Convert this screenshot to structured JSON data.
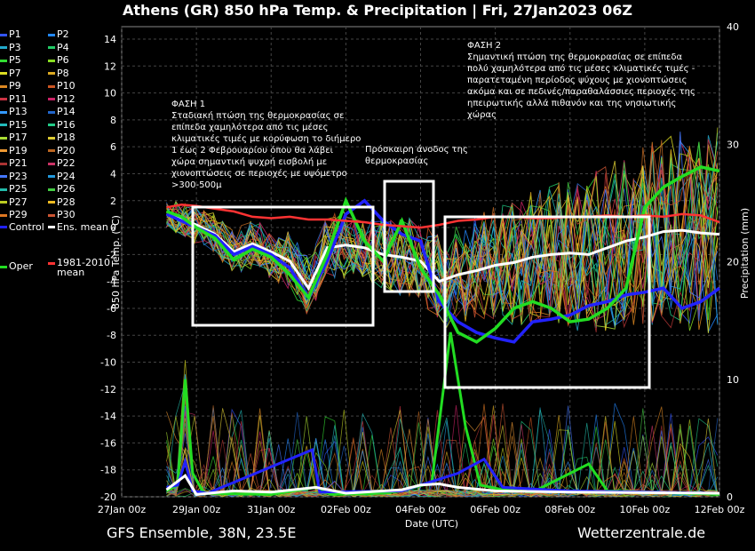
{
  "title": "Athens  (GR)  850 hPa Temp. & Precipitation | Fri, 27Jan2023 06Z",
  "footer": {
    "left": "GFS Ensemble, 38N, 23.5E",
    "right": "Wetterzentrale.de"
  },
  "colors": {
    "control": "#2222ff",
    "ens_mean": "#ffffff",
    "oper": "#22dd22",
    "climate": "#ff3333",
    "members": [
      "#3355ff",
      "#2288ff",
      "#22aacc",
      "#22cc66",
      "#33dd33",
      "#88dd22",
      "#dddd22",
      "#ddaa22",
      "#dd8822",
      "#cc5522",
      "#cc3344",
      "#cc2266",
      "#3399ff",
      "#2266cc",
      "#22bbbb",
      "#22cc88",
      "#aadd33",
      "#ddcc33",
      "#ee9933",
      "#bb6622",
      "#aa3333",
      "#cc3366",
      "#4477ff",
      "#2299dd",
      "#22bbaa",
      "#44cc44",
      "#bbcc22",
      "#eebb22",
      "#dd7722",
      "#cc5533"
    ]
  },
  "legend": {
    "members": [
      "P1",
      "P2",
      "P3",
      "P4",
      "P5",
      "P6",
      "P7",
      "P8",
      "P9",
      "P10",
      "P11",
      "P12",
      "P13",
      "P14",
      "P15",
      "P16",
      "P17",
      "P18",
      "P19",
      "P20",
      "P21",
      "P22",
      "P23",
      "P24",
      "P25",
      "P26",
      "P27",
      "P28",
      "P29",
      "P30"
    ],
    "control": "Control",
    "ens_mean": "Ens. mean",
    "oper": "Oper",
    "climate": "1981-2010\nmean"
  },
  "annotations": {
    "phase1": "ΦΑΣΗ 1\nΣταδιακή πτώση της θερμοκρασίας σε\nεπίπεδα χαμηλότερα από τις μέσες\nκλιματικές τιμές με κορύφωση το διήμερο\n1 έως 2 Φεβρουαρίου όπου θα λάβει\nχώρα σημαντική ψυχρή εισβολή με\nχιονοπτώσεις σε περιοχές με υψόμετρο\n>300-500μ",
    "mid": "Πρόσκαιρη άνοδος της\nθερμοκρασίας",
    "phase2": "ΦΑΣΗ 2\nΣημαντική πτώση της θερμοκρασίας σε επίπεδα\nπολύ χαμηλότερα από τις μέσες κλιματικές τιμές -\nπαρατεταμένη περίοδος ψύχους με χιονοπτώσεις\nακόμα και σε πεδινές/παραθαλάσσιες περιοχές της\nηπειρωτικής αλλά πιθανόν και της νησιωτικής\nχώρας"
  },
  "chart_data": {
    "type": "line",
    "xlabel": "Date (UTC)",
    "ylabel": "850 hPa Temp. (°C)",
    "y2label": "Precipitation (mm)",
    "ylim": [
      -20,
      15
    ],
    "y2lim": [
      0,
      40
    ],
    "y_ticks": [
      -20,
      -18,
      -16,
      -14,
      -12,
      -10,
      -8,
      -6,
      -4,
      -2,
      0,
      2,
      4,
      6,
      8,
      10,
      12,
      14
    ],
    "y2_ticks": [
      0,
      10,
      20,
      30,
      40
    ],
    "x_range_days": [
      0,
      16
    ],
    "x_ticks": [
      {
        "day": 0,
        "label": "27Jan 00z"
      },
      {
        "day": 2,
        "label": "29Jan 00z"
      },
      {
        "day": 4,
        "label": "31Jan 00z"
      },
      {
        "day": 6,
        "label": "02Feb 00z"
      },
      {
        "day": 8,
        "label": "04Feb 00z"
      },
      {
        "day": 10,
        "label": "06Feb 00z"
      },
      {
        "day": 12,
        "label": "08Feb 00z"
      },
      {
        "day": 14,
        "label": "10Feb 00z"
      },
      {
        "day": 16,
        "label": "12Feb 00z"
      }
    ],
    "grid": true,
    "series": [
      {
        "name": "Ens. mean",
        "x": [
          1.2,
          1.6,
          2,
          2.5,
          3,
          3.5,
          4,
          4.5,
          5,
          5.5,
          6,
          6.5,
          7,
          7.5,
          8,
          8.5,
          9,
          9.5,
          10,
          10.5,
          11,
          11.5,
          12,
          12.5,
          13,
          13.5,
          14,
          14.5,
          15,
          15.5,
          16
        ],
        "y": [
          1,
          0.6,
          0.2,
          -0.5,
          -1.8,
          -1.2,
          -1.8,
          -2.5,
          -4.5,
          -1.5,
          -1.3,
          -1.5,
          -2,
          -2.2,
          -2.5,
          -4,
          -3.5,
          -3.2,
          -2.8,
          -2.6,
          -2.2,
          -2,
          -1.9,
          -2,
          -1.5,
          -1,
          -0.7,
          -0.3,
          -0.2,
          -0.4,
          -0.5
        ]
      },
      {
        "name": "Control",
        "x": [
          1.2,
          1.6,
          2,
          2.5,
          3,
          3.5,
          4,
          4.5,
          5,
          5.5,
          6,
          6.5,
          7,
          7.5,
          8,
          8.5,
          9,
          9.5,
          10,
          10.5,
          11,
          11.5,
          12,
          12.5,
          13,
          13.5,
          14,
          14.5,
          15,
          15.5,
          16
        ],
        "y": [
          1,
          0.5,
          0,
          -0.6,
          -2,
          -1.4,
          -2,
          -3,
          -5.2,
          -2.5,
          1,
          2,
          0.5,
          -0.5,
          -1,
          -5.5,
          -7,
          -7.8,
          -8.2,
          -8.5,
          -7,
          -6.8,
          -6.5,
          -5.8,
          -5.5,
          -5,
          -4.8,
          -4.5,
          -6,
          -5.5,
          -4.5
        ]
      },
      {
        "name": "Oper",
        "x": [
          1.2,
          1.6,
          2,
          2.5,
          3,
          3.5,
          4,
          4.5,
          5,
          5.5,
          6,
          6.5,
          7,
          7.5,
          8,
          8.5,
          9,
          9.5,
          10,
          10.5,
          11,
          11.5,
          12,
          12.5,
          13,
          13.5,
          14,
          14.5,
          15,
          15.5,
          16
        ],
        "y": [
          1.2,
          0.8,
          0,
          -0.8,
          -2.4,
          -1.6,
          -2.2,
          -3.5,
          -5.2,
          -2,
          2,
          -1,
          -2.5,
          0.5,
          -3,
          -5,
          -7.8,
          -8.5,
          -7.5,
          -6,
          -5.5,
          -6,
          -7,
          -6.8,
          -6,
          -4.5,
          1.5,
          3,
          3.8,
          4.5,
          4.2
        ]
      },
      {
        "name": "1981-2010\nmean",
        "x": [
          1.2,
          1.6,
          2,
          2.5,
          3,
          3.5,
          4,
          4.5,
          5,
          5.5,
          6,
          6.5,
          7,
          7.5,
          8,
          8.5,
          9,
          9.5,
          10,
          10.5,
          11,
          11.5,
          12,
          12.5,
          13,
          13.5,
          14,
          14.5,
          15,
          15.5,
          16
        ],
        "y": [
          1.5,
          1.7,
          1.6,
          1.4,
          1.2,
          0.8,
          0.7,
          0.8,
          0.6,
          0.6,
          0.5,
          0.4,
          0.2,
          0.1,
          0,
          0.2,
          0.5,
          0.6,
          0.8,
          0.8,
          0.7,
          0.7,
          0.8,
          0.8,
          0.9,
          0.8,
          0.9,
          0.8,
          1,
          0.9,
          0.4
        ]
      }
    ]
  }
}
